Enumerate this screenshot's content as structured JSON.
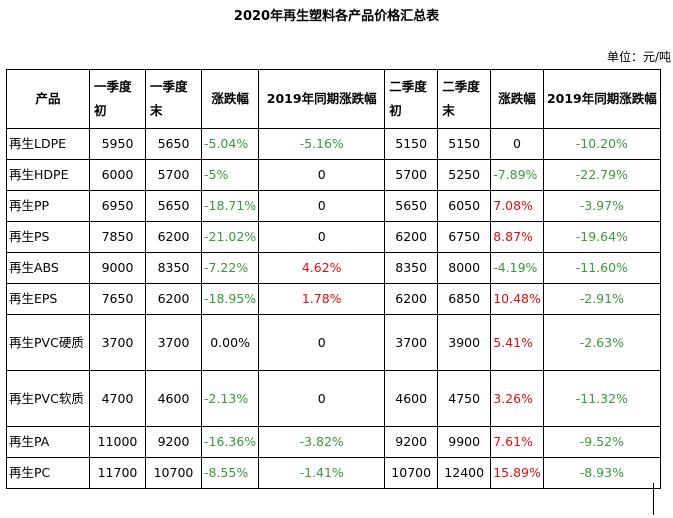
{
  "title": "2020年再生塑料各产品价格汇总表",
  "unit": "单位：元/吨",
  "headers": [
    "产品",
    "一季度初",
    "一季度末",
    "涨跌幅",
    "2019年同期涨跌幅",
    "二季度初",
    "二季度末",
    "涨跌幅",
    "2019年同期涨跌幅"
  ],
  "rows": [
    {
      "product": "再生LDPE",
      "q1_start": "5950",
      "q1_end": "5650",
      "q1_change": "-5.04%",
      "q1_yoy": "-5.16%",
      "q2_start": "5150",
      "q2_end": "5150",
      "q2_change": "0",
      "q2_yoy": "-10.20%"
    },
    {
      "product": "再生HDPE",
      "q1_start": "6000",
      "q1_end": "5700",
      "q1_change": "-5%",
      "q1_yoy": "0",
      "q2_start": "5700",
      "q2_end": "5250",
      "q2_change": "-7.89%",
      "q2_yoy": "-22.79%"
    },
    {
      "product": "再生PP",
      "q1_start": "6950",
      "q1_end": "5650",
      "q1_change": "-18.71%",
      "q1_yoy": "0",
      "q2_start": "5650",
      "q2_end": "6050",
      "q2_change": "7.08%",
      "q2_yoy": "-3.97%"
    },
    {
      "product": "再生PS",
      "q1_start": "7850",
      "q1_end": "6200",
      "q1_change": "-21.02%",
      "q1_yoy": "0",
      "q2_start": "6200",
      "q2_end": "6750",
      "q2_change": "8.87%",
      "q2_yoy": "-19.64%"
    },
    {
      "product": "再生ABS",
      "q1_start": "9000",
      "q1_end": "8350",
      "q1_change": "-7.22%",
      "q1_yoy": "4.62%",
      "q2_start": "8350",
      "q2_end": "8000",
      "q2_change": "-4.19%",
      "q2_yoy": "-11.60%"
    },
    {
      "product": "再生EPS",
      "q1_start": "7650",
      "q1_end": "6200",
      "q1_change": "-18.95%",
      "q1_yoy": "1.78%",
      "q2_start": "6200",
      "q2_end": "6850",
      "q2_change": "10.48%",
      "q2_yoy": "-2.91%"
    },
    {
      "product": "再生PVC硬质",
      "q1_start": "3700",
      "q1_end": "3700",
      "q1_change": "0.00%",
      "q1_yoy": "0",
      "q2_start": "3700",
      "q2_end": "3900",
      "q2_change": "5.41%",
      "q2_yoy": "-2.63%"
    },
    {
      "product": "再生PVC软质",
      "q1_start": "4700",
      "q1_end": "4600",
      "q1_change": "-2.13%",
      "q1_yoy": "0",
      "q2_start": "4600",
      "q2_end": "4750",
      "q2_change": "3.26%",
      "q2_yoy": "-11.32%"
    },
    {
      "product": "再生PA",
      "q1_start": "11000",
      "q1_end": "9200",
      "q1_change": "-16.36%",
      "q1_yoy": "-3.82%",
      "q2_start": "9200",
      "q2_end": "9900",
      "q2_change": "7.61%",
      "q2_yoy": "-9.52%"
    },
    {
      "product": "再生PC",
      "q1_start": "11700",
      "q1_end": "10700",
      "q1_change": "-8.55%",
      "q1_yoy": "-1.41%",
      "q2_start": "10700",
      "q2_end": "12400",
      "q2_change": "15.89%",
      "q2_yoy": "-8.93%"
    }
  ],
  "colors": {
    "negative": "#3a9a3a",
    "positive": "#e01010",
    "neutral": "#000000"
  }
}
